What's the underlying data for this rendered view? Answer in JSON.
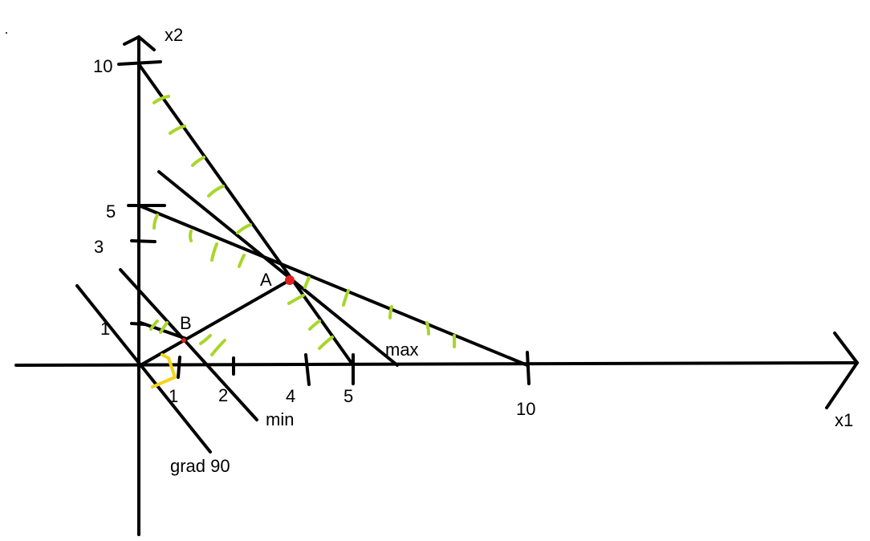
{
  "colors": {
    "ink": "#000000",
    "hatch": "#a8d62a",
    "point": "#e02020",
    "right_angle": "#f2d41c"
  },
  "axes": {
    "x_label": "x1",
    "y_label": "x2",
    "x_ticks": [
      "1",
      "2",
      "4",
      "5",
      "10"
    ],
    "y_ticks": [
      "10",
      "5",
      "3",
      "1"
    ]
  },
  "points": {
    "A": "A",
    "B": "B"
  },
  "lines": {
    "max_label": "max",
    "min_label": "min",
    "gradient_label": "grad 90"
  }
}
